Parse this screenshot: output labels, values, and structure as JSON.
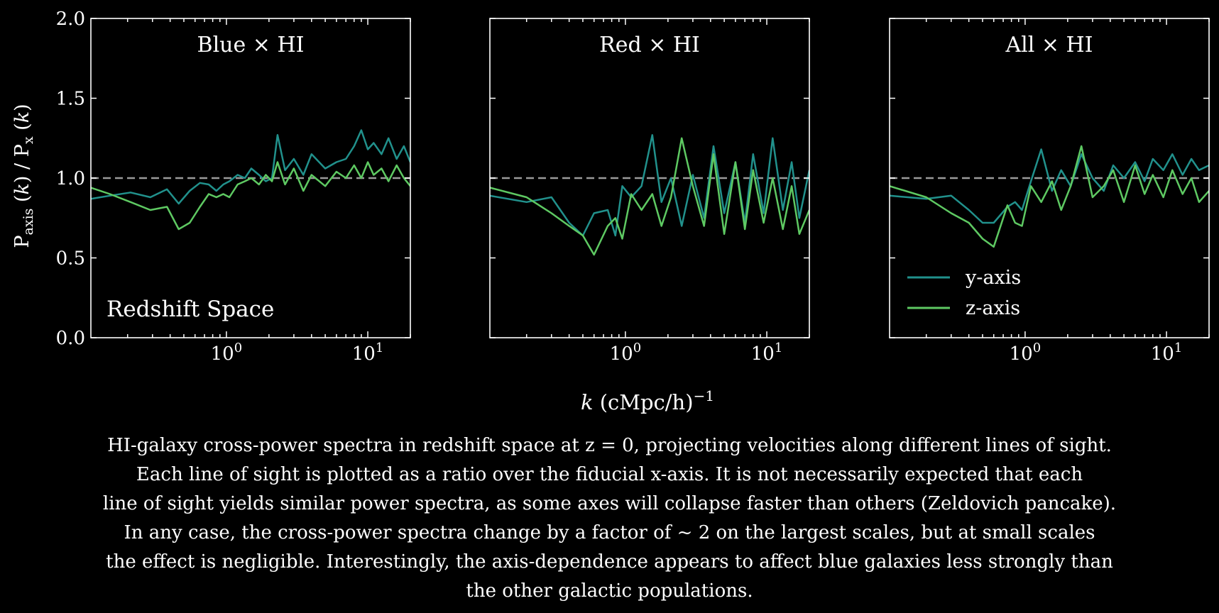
{
  "figure": {
    "ylabel": "P_axis (k) / P_x (k)",
    "xlabel": "k (cMpc/h)^-1",
    "caption_lines": [
      "HI-galaxy cross-power spectra in redshift space at z = 0, projecting velocities along different lines of sight.",
      "Each line of sight is plotted as a ratio over the fiducial x-axis. It is not necessarily expected that each",
      "line of sight yields similar power spectra, as some axes will collapse faster than others (Zeldovich pancake).",
      "In any case, the cross-power spectra change by a factor of  ~ 2 on the largest scales, but at small scales",
      "the effect is negligible. Interestingly, the axis-dependence appears to affect blue galaxies less strongly than",
      "the other galactic populations."
    ]
  },
  "colors": {
    "y_axis": "#21918c",
    "z_axis": "#5ec962",
    "reference": "#9a9a9a",
    "background": "#000000",
    "foreground": "#ffffff"
  },
  "chart_data": [
    {
      "type": "line",
      "title": "Blue × HI",
      "annotation": "Redshift Space",
      "xscale": "log",
      "xlim": [
        0.11,
        20
      ],
      "ylim": [
        0,
        2.0
      ],
      "yticks": [
        "0.0",
        "0.5",
        "1.0",
        "1.5",
        "2.0"
      ],
      "xticks": [
        "10^0",
        "10^1"
      ],
      "reference_line": 1.0,
      "series": [
        {
          "name": "y-axis",
          "x": [
            0.11,
            0.15,
            0.21,
            0.29,
            0.38,
            0.46,
            0.55,
            0.65,
            0.75,
            0.85,
            0.95,
            1.05,
            1.2,
            1.35,
            1.5,
            1.7,
            1.9,
            2.1,
            2.3,
            2.6,
            3.0,
            3.5,
            4.0,
            5.0,
            6.0,
            7.0,
            8.0,
            9.0,
            10.0,
            11.0,
            12.5,
            14.0,
            16.0,
            18.0,
            20.0
          ],
          "y": [
            0.87,
            0.89,
            0.91,
            0.88,
            0.93,
            0.84,
            0.92,
            0.97,
            0.96,
            0.92,
            0.96,
            0.98,
            1.02,
            1.0,
            1.06,
            1.02,
            0.98,
            1.0,
            1.27,
            1.05,
            1.12,
            1.02,
            1.15,
            1.06,
            1.1,
            1.12,
            1.2,
            1.3,
            1.18,
            1.22,
            1.15,
            1.25,
            1.12,
            1.2,
            1.1
          ]
        },
        {
          "name": "z-axis",
          "x": [
            0.11,
            0.15,
            0.21,
            0.29,
            0.38,
            0.46,
            0.55,
            0.65,
            0.75,
            0.85,
            0.95,
            1.05,
            1.2,
            1.35,
            1.5,
            1.7,
            1.9,
            2.1,
            2.3,
            2.6,
            3.0,
            3.5,
            4.0,
            5.0,
            6.0,
            7.0,
            8.0,
            9.0,
            10.0,
            11.0,
            12.5,
            14.0,
            16.0,
            18.0,
            20.0
          ],
          "y": [
            0.94,
            0.9,
            0.85,
            0.8,
            0.82,
            0.68,
            0.72,
            0.82,
            0.9,
            0.88,
            0.9,
            0.88,
            0.96,
            0.98,
            1.0,
            0.96,
            1.02,
            0.98,
            1.1,
            0.96,
            1.06,
            0.92,
            1.02,
            0.95,
            1.04,
            1.0,
            1.08,
            1.0,
            1.1,
            1.02,
            1.06,
            0.98,
            1.08,
            1.0,
            0.95
          ]
        }
      ]
    },
    {
      "type": "line",
      "title": "Red × HI",
      "xscale": "log",
      "xlim": [
        0.11,
        20
      ],
      "ylim": [
        0,
        2.0
      ],
      "xticks": [
        "10^0",
        "10^1"
      ],
      "reference_line": 1.0,
      "series": [
        {
          "name": "y-axis",
          "x": [
            0.11,
            0.2,
            0.3,
            0.4,
            0.5,
            0.6,
            0.75,
            0.85,
            0.95,
            1.1,
            1.3,
            1.55,
            1.8,
            2.1,
            2.5,
            3.0,
            3.6,
            4.2,
            5.0,
            6.0,
            7.0,
            8.0,
            9.5,
            11.0,
            13.0,
            15.0,
            17.0,
            20.0
          ],
          "y": [
            0.89,
            0.85,
            0.88,
            0.72,
            0.64,
            0.78,
            0.8,
            0.64,
            0.95,
            0.88,
            0.95,
            1.27,
            0.85,
            1.0,
            0.7,
            1.02,
            0.75,
            1.2,
            0.78,
            1.1,
            0.72,
            1.15,
            0.78,
            1.25,
            0.8,
            1.1,
            0.75,
            1.05
          ]
        },
        {
          "name": "z-axis",
          "x": [
            0.11,
            0.2,
            0.3,
            0.4,
            0.5,
            0.6,
            0.75,
            0.85,
            0.95,
            1.1,
            1.3,
            1.55,
            1.8,
            2.1,
            2.5,
            3.0,
            3.6,
            4.2,
            5.0,
            6.0,
            7.0,
            8.0,
            9.5,
            11.0,
            13.0,
            15.0,
            17.0,
            20.0
          ],
          "y": [
            0.94,
            0.88,
            0.78,
            0.7,
            0.64,
            0.52,
            0.7,
            0.75,
            0.62,
            0.9,
            0.8,
            0.9,
            0.7,
            0.88,
            1.25,
            0.95,
            0.7,
            1.15,
            0.65,
            1.1,
            0.68,
            1.05,
            0.72,
            1.0,
            0.68,
            0.95,
            0.65,
            0.8
          ]
        }
      ]
    },
    {
      "type": "line",
      "title": "All × HI",
      "xscale": "log",
      "xlim": [
        0.11,
        20
      ],
      "ylim": [
        0,
        2.0
      ],
      "xticks": [
        "10^0",
        "10^1"
      ],
      "reference_line": 1.0,
      "legend": {
        "placement": "lower-left",
        "entries": [
          "y-axis",
          "z-axis"
        ]
      },
      "series": [
        {
          "name": "y-axis",
          "x": [
            0.11,
            0.2,
            0.3,
            0.4,
            0.5,
            0.6,
            0.75,
            0.85,
            0.95,
            1.1,
            1.3,
            1.55,
            1.8,
            2.1,
            2.5,
            3.0,
            3.6,
            4.2,
            5.0,
            6.0,
            7.0,
            8.0,
            9.5,
            11.0,
            13.0,
            15.0,
            17.0,
            20.0
          ],
          "y": [
            0.89,
            0.87,
            0.89,
            0.8,
            0.72,
            0.72,
            0.82,
            0.85,
            0.8,
            0.98,
            1.18,
            0.92,
            1.05,
            0.95,
            1.15,
            1.0,
            0.92,
            1.08,
            1.0,
            1.1,
            0.98,
            1.12,
            1.05,
            1.15,
            1.02,
            1.12,
            1.05,
            1.08
          ]
        },
        {
          "name": "z-axis",
          "x": [
            0.11,
            0.2,
            0.3,
            0.4,
            0.5,
            0.6,
            0.75,
            0.85,
            0.95,
            1.1,
            1.3,
            1.55,
            1.8,
            2.1,
            2.5,
            3.0,
            3.6,
            4.2,
            5.0,
            6.0,
            7.0,
            8.0,
            9.5,
            11.0,
            13.0,
            15.0,
            17.0,
            20.0
          ],
          "y": [
            0.95,
            0.88,
            0.78,
            0.72,
            0.62,
            0.57,
            0.83,
            0.72,
            0.7,
            0.95,
            0.85,
            0.98,
            0.8,
            0.95,
            1.2,
            0.88,
            0.95,
            1.05,
            0.85,
            1.08,
            0.9,
            1.02,
            0.88,
            1.05,
            0.9,
            1.0,
            0.85,
            0.92
          ]
        }
      ]
    }
  ]
}
